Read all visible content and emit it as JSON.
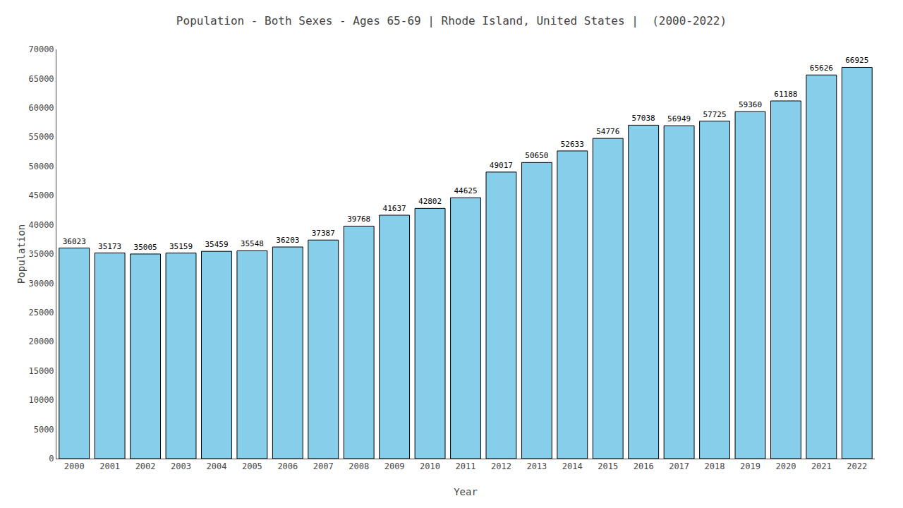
{
  "chart_data": {
    "type": "bar",
    "title": "Population - Both Sexes - Ages 65-69 | Rhode Island, United States |  (2000-2022)",
    "x_label": "Year",
    "y_label": "Population",
    "categories": [
      "2000",
      "2001",
      "2002",
      "2003",
      "2004",
      "2005",
      "2006",
      "2007",
      "2008",
      "2009",
      "2010",
      "2011",
      "2012",
      "2013",
      "2014",
      "2015",
      "2016",
      "2017",
      "2018",
      "2019",
      "2020",
      "2021",
      "2022"
    ],
    "values": [
      36023,
      35173,
      35005,
      35159,
      35459,
      35548,
      36203,
      37387,
      39768,
      41637,
      42802,
      44625,
      49017,
      50650,
      52633,
      54776,
      57038,
      56949,
      57725,
      59360,
      61188,
      65626,
      66925
    ],
    "color": "#87CEEB",
    "ylim": [
      0,
      70000
    ],
    "yticks": [
      0,
      5000,
      10000,
      15000,
      20000,
      25000,
      30000,
      35000,
      40000,
      45000,
      50000,
      55000,
      60000,
      65000,
      70000
    ],
    "grid": false,
    "data_labels": true
  }
}
